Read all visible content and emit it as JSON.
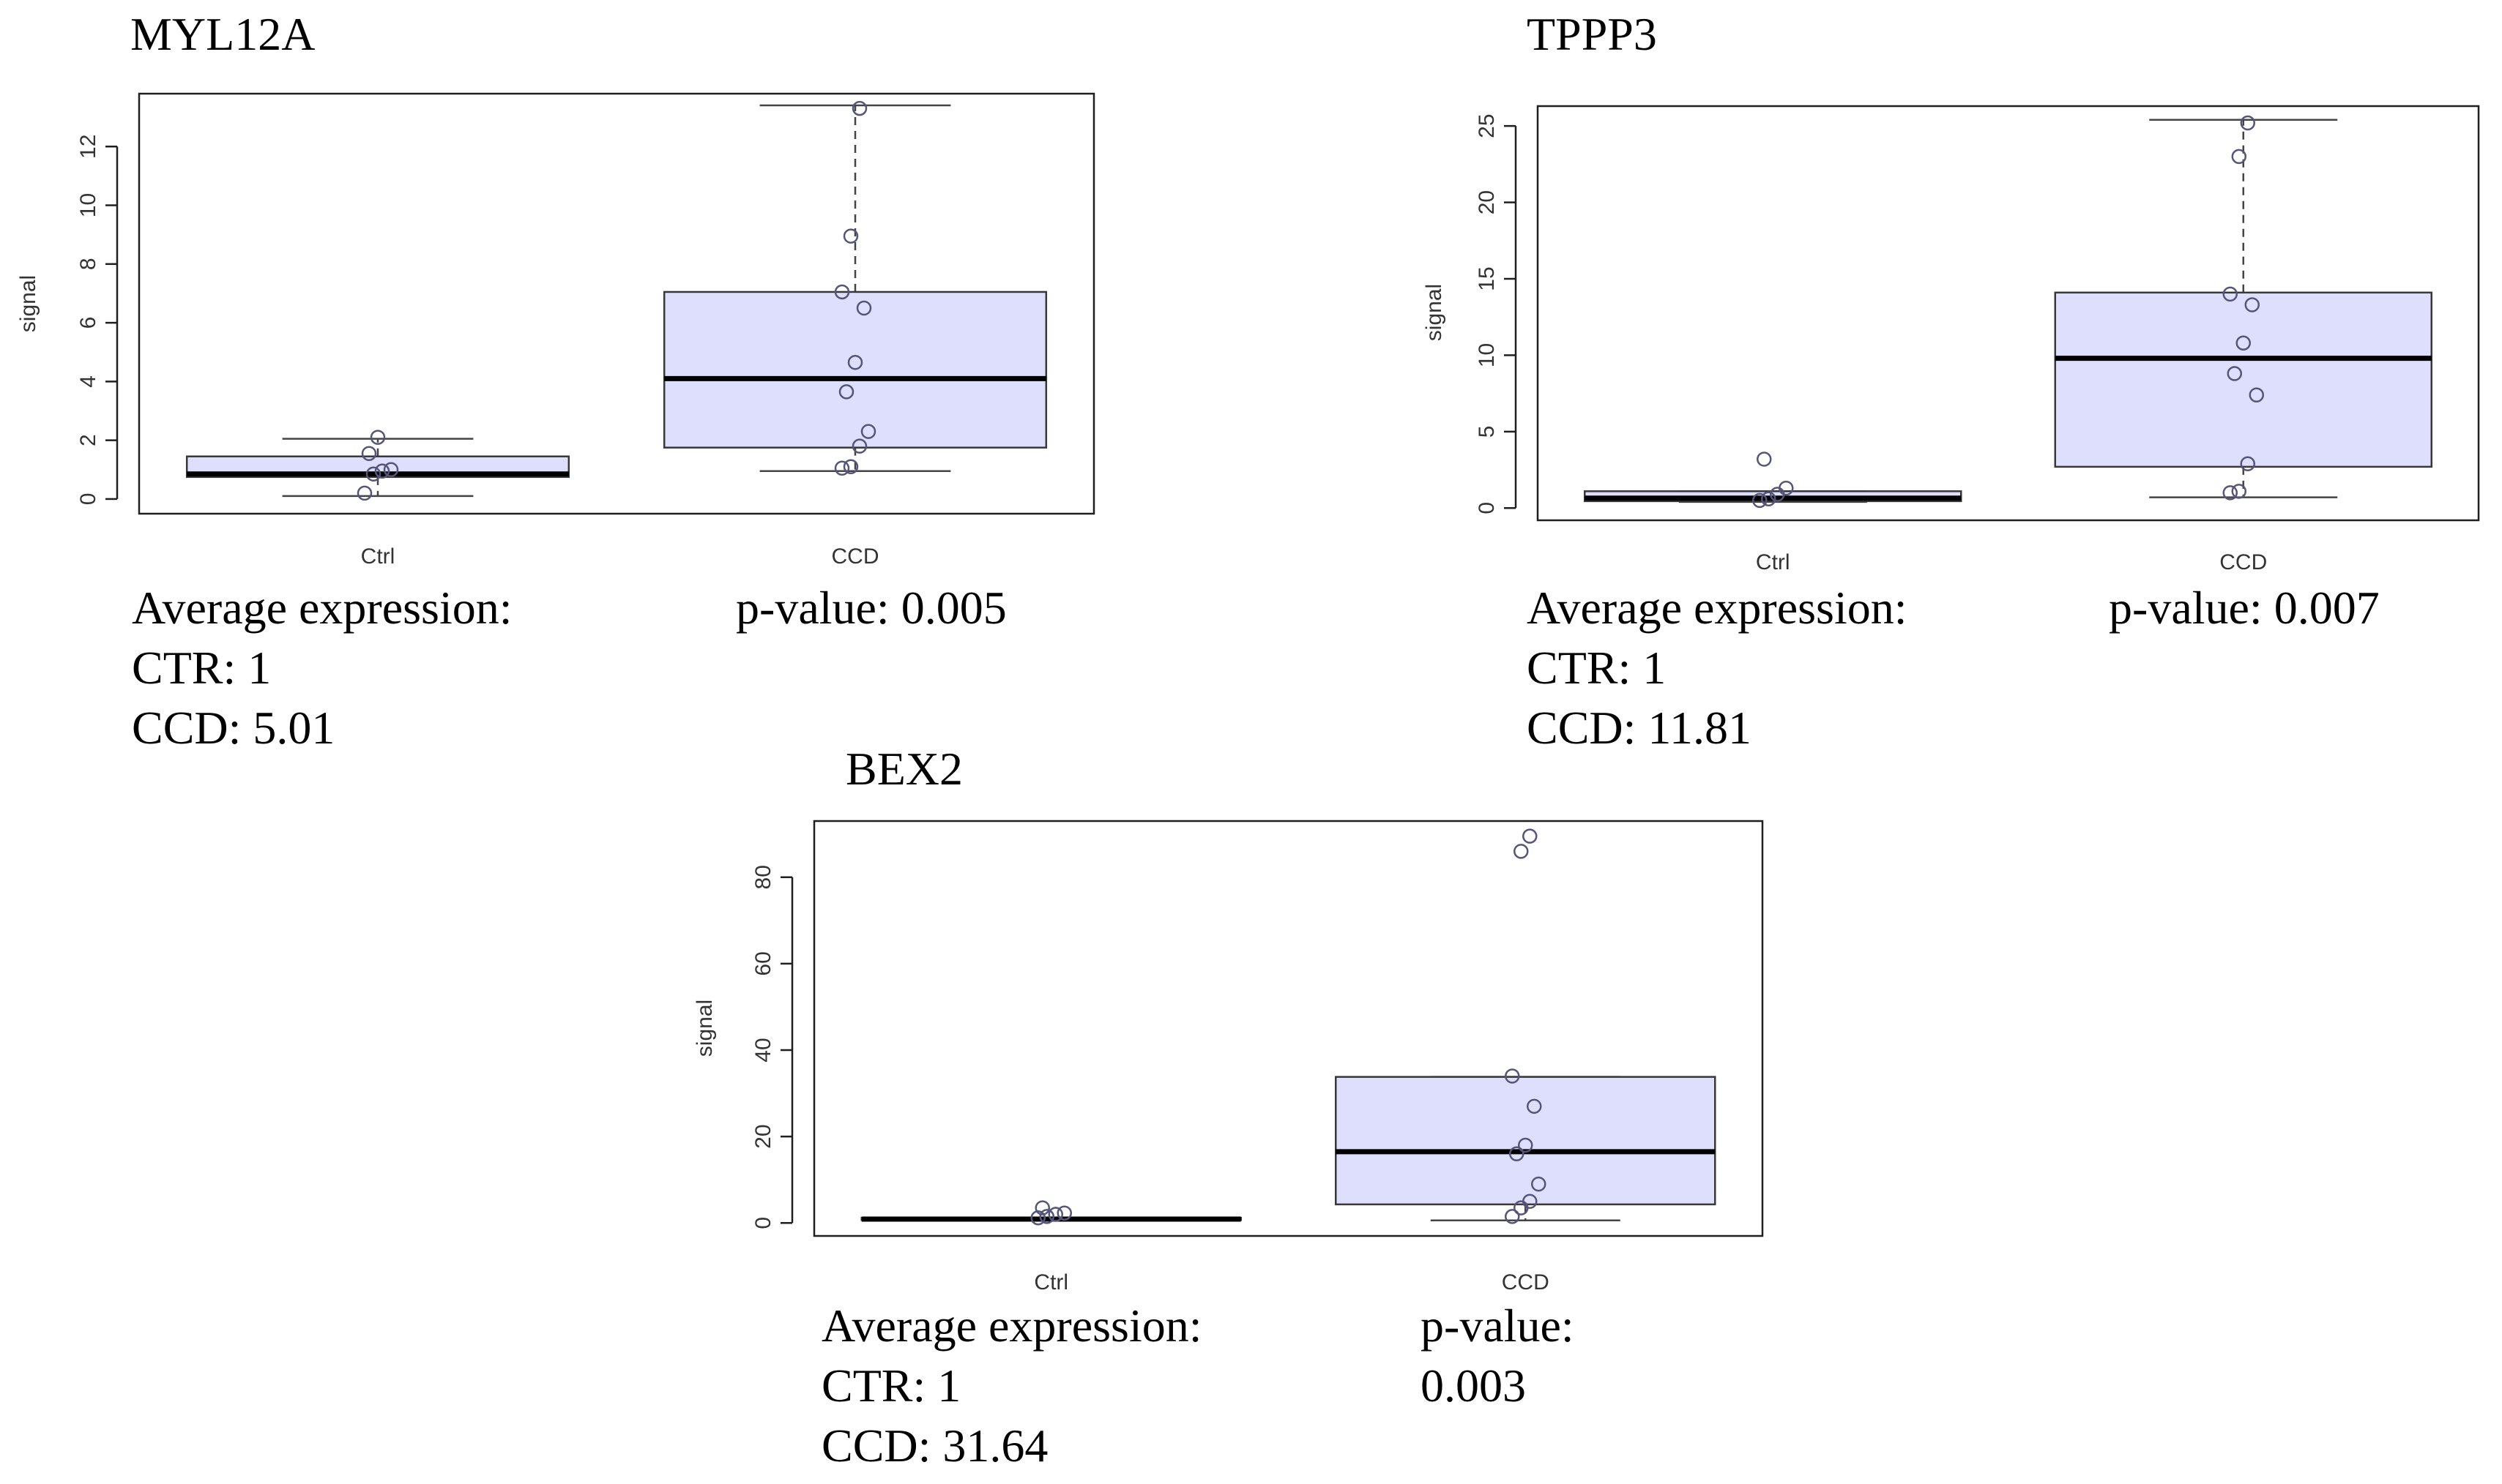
{
  "chart_data": [
    {
      "type": "box",
      "title": "MYL12A",
      "ylabel": "signal",
      "categories": [
        "Ctrl",
        "CCD"
      ],
      "yticks": [
        "0",
        "2",
        "4",
        "6",
        "8",
        "10",
        "12"
      ],
      "ytick_values": [
        0,
        2,
        4,
        6,
        8,
        10,
        12
      ],
      "ylim": [
        -0.5,
        13.8
      ],
      "boxes": [
        {
          "name": "Ctrl",
          "whisker_low": 0.1,
          "q1": 0.75,
          "median": 0.85,
          "q3": 1.45,
          "whisker_high": 2.05,
          "points": [
            0.2,
            0.85,
            0.95,
            1.0,
            1.55,
            2.1
          ]
        },
        {
          "name": "CCD",
          "whisker_low": 0.95,
          "q1": 1.75,
          "median": 4.1,
          "q3": 7.05,
          "whisker_high": 13.4,
          "points": [
            1.05,
            1.1,
            1.8,
            2.3,
            3.65,
            4.65,
            6.5,
            7.05,
            8.95,
            13.3
          ]
        }
      ],
      "caption": {
        "left": [
          "Average expression:",
          "CTR: 1",
          "CCD: 5.01"
        ],
        "right": [
          "p-value: 0.005"
        ]
      }
    },
    {
      "type": "box",
      "title": "TPPP3",
      "ylabel": "signal",
      "categories": [
        "Ctrl",
        "CCD"
      ],
      "yticks": [
        "0",
        "5",
        "10",
        "15",
        "20",
        "25"
      ],
      "ytick_values": [
        0,
        5,
        10,
        15,
        20,
        25
      ],
      "ylim": [
        -0.8,
        26.3
      ],
      "boxes": [
        {
          "name": "Ctrl",
          "whisker_low": 0.4,
          "q1": 0.45,
          "median": 0.65,
          "q3": 1.1,
          "whisker_high": 1.1,
          "points": [
            0.5,
            0.6,
            0.9,
            1.3,
            3.2
          ]
        },
        {
          "name": "CCD",
          "whisker_low": 0.7,
          "q1": 2.7,
          "median": 9.8,
          "q3": 14.1,
          "whisker_high": 25.4,
          "points": [
            1.0,
            1.1,
            2.9,
            7.4,
            8.8,
            10.8,
            13.3,
            14.0,
            23.0,
            25.2
          ]
        }
      ],
      "caption": {
        "left": [
          "Average expression:",
          "CTR: 1",
          "CCD: 11.81"
        ],
        "right": [
          "p-value: 0.007"
        ]
      }
    },
    {
      "type": "box",
      "title": "BEX2",
      "ylabel": "signal",
      "categories": [
        "Ctrl",
        "CCD"
      ],
      "yticks": [
        "0",
        "20",
        "40",
        "60",
        "80"
      ],
      "ytick_values": [
        0,
        20,
        40,
        60,
        80
      ],
      "ylim": [
        -3,
        93
      ],
      "boxes": [
        {
          "name": "Ctrl",
          "whisker_low": 0.6,
          "q1": 0.7,
          "median": 0.9,
          "q3": 1.2,
          "whisker_high": 1.2,
          "points": [
            1.2,
            1.5,
            2.0,
            2.3,
            3.5
          ]
        },
        {
          "name": "CCD",
          "whisker_low": 0.6,
          "q1": 4.3,
          "median": 16.5,
          "q3": 33.8,
          "whisker_high": 33.8,
          "points": [
            1.5,
            3.5,
            5.0,
            9.0,
            16.0,
            18.0,
            27.0,
            34.0,
            86.0,
            89.5
          ]
        }
      ],
      "caption": {
        "left": [
          "Average expression:",
          "CTR: 1",
          "CCD: 31.64"
        ],
        "right": [
          "p-value:",
          "0.003"
        ]
      }
    }
  ]
}
